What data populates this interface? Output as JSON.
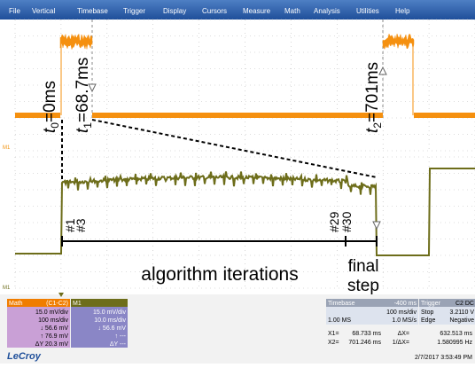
{
  "menu": [
    "File",
    "Vertical",
    "Timebase",
    "Trigger",
    "Display",
    "Cursors",
    "Measure",
    "Math",
    "Analysis",
    "Utilities",
    "Help"
  ],
  "annotations": {
    "t0": {
      "var": "t",
      "sub": "0",
      "rest": "=0ms"
    },
    "t1": {
      "var": "t",
      "sub": "1",
      "rest": "=68.7ms"
    },
    "t2": {
      "var": "t",
      "sub": "2",
      "rest": "=701ms"
    },
    "iter1": "#1",
    "iter3": "#3",
    "iter29": "#29",
    "iter30": "#30",
    "caption": "algorithm iterations",
    "final": [
      "final",
      "step"
    ]
  },
  "markers": {
    "upper": "M1",
    "lower": "M1"
  },
  "math_box": {
    "header": "Math",
    "source": "(C1-C2)",
    "rows": [
      "15.0 mV/div",
      "100 ms/div",
      "↓ 56.6 mV",
      "↑ 76.9 mV",
      "ΔY 20.3 mV"
    ]
  },
  "m1_box": {
    "header": "M1",
    "rows": [
      "15.0 mV/div",
      "10.0 ms/div",
      "↓ 56.6 mV",
      "↑ ---",
      "ΔY ---"
    ]
  },
  "timebase_box": {
    "header": "Timebase",
    "delay": "-400 ms",
    "rows": [
      [
        "",
        "100 ms/div"
      ],
      [
        "1.00 MS",
        "1.0 MS/s"
      ]
    ]
  },
  "trigger_box": {
    "header": "Trigger",
    "channel": "C2 DC",
    "rows": [
      [
        "Stop",
        "3.2110 V"
      ],
      [
        "Edge",
        "Negative"
      ]
    ]
  },
  "cursors": [
    [
      "X1=",
      "68.733 ms",
      "ΔX=",
      "632.513 ms"
    ],
    [
      "X2=",
      "701.246 ms",
      "1/ΔX=",
      "1.580995 Hz"
    ]
  ],
  "brand": "LeCroy",
  "timestamp": "2/7/2017 3:53:49 PM"
}
